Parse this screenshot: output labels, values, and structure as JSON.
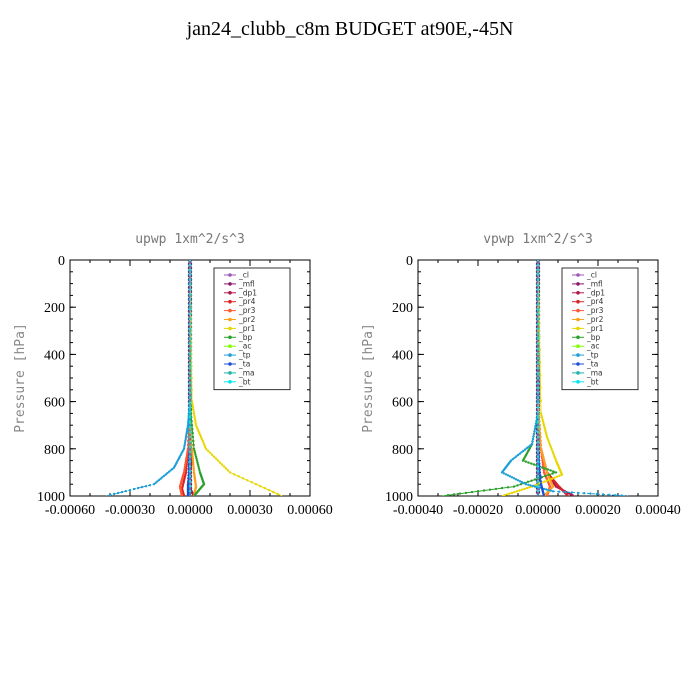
{
  "title": "jan24_clubb_c8m  BUDGET at90E,-45N",
  "chart_data": [
    {
      "type": "line",
      "title": "upwp   1xm^2/s^3",
      "ylabel": "Pressure [hPa]",
      "xlabel": "",
      "xlim": [
        -0.0006,
        0.0006
      ],
      "ylim": [
        1000,
        0
      ],
      "xticks": [
        "-0.00060",
        "-0.00030",
        "0.00000",
        "0.00030",
        "0.00060"
      ],
      "xtick_values": [
        -0.0006,
        -0.0003,
        0,
        0.0003,
        0.0006
      ],
      "yticks": [
        "0",
        "200",
        "400",
        "600",
        "800",
        "1000"
      ],
      "ytick_values": [
        0,
        200,
        400,
        600,
        800,
        1000
      ],
      "legend_position": "top-right",
      "series": [
        {
          "name": "_cl",
          "color": "#9b59b6",
          "x": [
            0,
            0,
            0,
            0,
            0
          ],
          "y": [
            0,
            250,
            500,
            750,
            1000
          ]
        },
        {
          "name": "_mfl",
          "color": "#8b1a6b",
          "x": [
            0,
            0,
            0,
            0,
            0,
            0
          ],
          "y": [
            0,
            200,
            400,
            600,
            800,
            1000
          ]
        },
        {
          "name": "_dp1",
          "color": "#b0174f",
          "x": [
            0,
            0,
            0,
            1e-05,
            -1e-05,
            2e-05
          ],
          "y": [
            0,
            400,
            700,
            850,
            950,
            1000
          ]
        },
        {
          "name": "_pr4",
          "color": "#d62728",
          "x": [
            0,
            0,
            -1e-05,
            -2e-05,
            -4e-05,
            -3e-05
          ],
          "y": [
            0,
            600,
            800,
            900,
            970,
            1000
          ]
        },
        {
          "name": "_pr3",
          "color": "#ff5733",
          "x": [
            0,
            0,
            -1e-05,
            -3e-05,
            -5e-05,
            -4e-05
          ],
          "y": [
            0,
            600,
            800,
            900,
            960,
            1000
          ]
        },
        {
          "name": "_pr2",
          "color": "#ff9f1a",
          "x": [
            0,
            0,
            1e-05,
            2e-05,
            3e-05,
            2e-05
          ],
          "y": [
            0,
            600,
            800,
            900,
            960,
            1000
          ]
        },
        {
          "name": "_pr1",
          "color": "#e8d600",
          "x": [
            0,
            1e-05,
            3e-05,
            8e-05,
            0.0002,
            0.00046
          ],
          "y": [
            0,
            600,
            700,
            800,
            900,
            1000
          ]
        },
        {
          "name": "_bp",
          "color": "#2ca02c",
          "x": [
            0,
            0,
            2e-05,
            5e-05,
            7e-05,
            2e-05
          ],
          "y": [
            0,
            600,
            800,
            900,
            950,
            1000
          ]
        },
        {
          "name": "_ac",
          "color": "#7fff00",
          "x": [
            0,
            0,
            0,
            0,
            0
          ],
          "y": [
            0,
            250,
            500,
            750,
            1000
          ]
        },
        {
          "name": "_tp",
          "color": "#1f9ed8",
          "x": [
            0,
            0,
            -1e-05,
            -3e-05,
            -8e-05,
            -0.00018,
            -0.00042
          ],
          "y": [
            0,
            600,
            700,
            800,
            880,
            950,
            1000
          ]
        },
        {
          "name": "_ta",
          "color": "#1f4fd8",
          "x": [
            0,
            0,
            0,
            -1e-05,
            -1e-05
          ],
          "y": [
            0,
            500,
            800,
            950,
            1000
          ]
        },
        {
          "name": "_ma",
          "color": "#20b2aa",
          "x": [
            0,
            0,
            0,
            0,
            0
          ],
          "y": [
            0,
            250,
            500,
            750,
            1000
          ]
        },
        {
          "name": "_bt",
          "color": "#00e5ee",
          "x": [
            0,
            0,
            0,
            0,
            0
          ],
          "y": [
            0,
            250,
            500,
            750,
            1000
          ]
        }
      ]
    },
    {
      "type": "line",
      "title": "vpwp   1xm^2/s^3",
      "ylabel": "Pressure [hPa]",
      "xlabel": "",
      "xlim": [
        -0.0004,
        0.0004
      ],
      "ylim": [
        1000,
        0
      ],
      "xticks": [
        "-0.00040",
        "-0.00020",
        "0.00000",
        "0.00020",
        "0.00040"
      ],
      "xtick_values": [
        -0.0004,
        -0.0002,
        0,
        0.0002,
        0.0004
      ],
      "yticks": [
        "0",
        "200",
        "400",
        "600",
        "800",
        "1000"
      ],
      "ytick_values": [
        0,
        200,
        400,
        600,
        800,
        1000
      ],
      "legend_position": "top-right",
      "series": [
        {
          "name": "_cl",
          "color": "#9b59b6",
          "x": [
            0,
            0,
            0,
            0,
            0
          ],
          "y": [
            0,
            250,
            500,
            750,
            1000
          ]
        },
        {
          "name": "_mfl",
          "color": "#8b1a6b",
          "x": [
            0,
            0,
            0,
            0,
            0,
            0
          ],
          "y": [
            0,
            200,
            400,
            600,
            800,
            1000
          ]
        },
        {
          "name": "_dp1",
          "color": "#b0174f",
          "x": [
            0,
            0,
            1e-05,
            3e-05,
            6e-05,
            0.00012
          ],
          "y": [
            0,
            600,
            800,
            900,
            960,
            1000
          ]
        },
        {
          "name": "_pr4",
          "color": "#d62728",
          "x": [
            0,
            0,
            1e-05,
            3e-05,
            7e-05,
            0.0001
          ],
          "y": [
            0,
            600,
            800,
            900,
            960,
            1000
          ]
        },
        {
          "name": "_pr3",
          "color": "#ff5733",
          "x": [
            0,
            0,
            1e-05,
            2e-05,
            4e-05,
            3e-05
          ],
          "y": [
            0,
            600,
            800,
            900,
            960,
            1000
          ]
        },
        {
          "name": "_pr2",
          "color": "#ff9f1a",
          "x": [
            0,
            0,
            1e-05,
            3e-05,
            5e-05,
            2e-05
          ],
          "y": [
            0,
            600,
            800,
            900,
            960,
            1000
          ]
        },
        {
          "name": "_pr1",
          "color": "#e8d600",
          "x": [
            0,
            1e-05,
            3e-05,
            6e-05,
            8e-05,
            -2e-05,
            -0.00012
          ],
          "y": [
            0,
            650,
            750,
            850,
            910,
            960,
            1000
          ]
        },
        {
          "name": "_bp",
          "color": "#2ca02c",
          "x": [
            0,
            0,
            -2e-05,
            -5e-05,
            6e-05,
            -8e-05,
            -0.00032
          ],
          "y": [
            0,
            650,
            780,
            850,
            900,
            960,
            1000
          ]
        },
        {
          "name": "_ac",
          "color": "#7fff00",
          "x": [
            0,
            0,
            0,
            0,
            0
          ],
          "y": [
            0,
            250,
            500,
            750,
            1000
          ]
        },
        {
          "name": "_tp",
          "color": "#1f9ed8",
          "x": [
            0,
            0,
            -2e-05,
            -9e-05,
            -0.00012,
            -4e-05,
            5e-05,
            0.0003
          ],
          "y": [
            0,
            650,
            780,
            850,
            900,
            950,
            980,
            1000
          ]
        },
        {
          "name": "_ta",
          "color": "#1f4fd8",
          "x": [
            0,
            0,
            0,
            1e-05,
            2e-05
          ],
          "y": [
            0,
            500,
            800,
            950,
            1000
          ]
        },
        {
          "name": "_ma",
          "color": "#20b2aa",
          "x": [
            0,
            0,
            0,
            0,
            0
          ],
          "y": [
            0,
            250,
            500,
            750,
            1000
          ]
        },
        {
          "name": "_bt",
          "color": "#00e5ee",
          "x": [
            0,
            0,
            0,
            0,
            0
          ],
          "y": [
            0,
            250,
            500,
            750,
            1000
          ]
        }
      ]
    }
  ]
}
